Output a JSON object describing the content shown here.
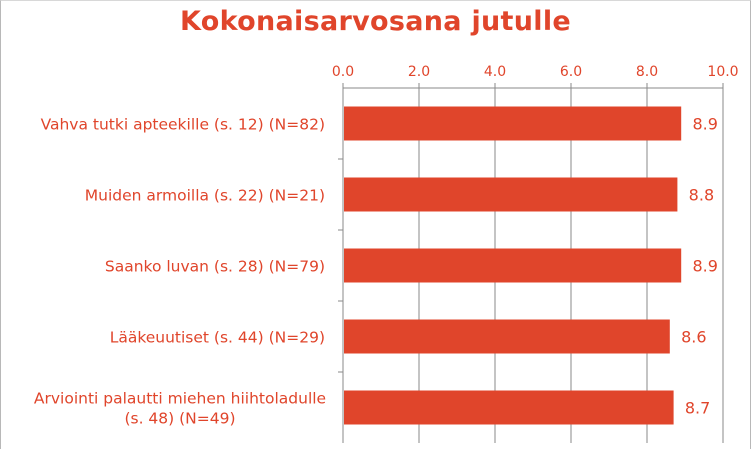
{
  "chart_data": {
    "type": "bar",
    "orientation": "horizontal",
    "title": "Kokonaisarvosana  jutulle",
    "categories": [
      [
        "Vahva tutki apteekille (s. 12) (N=82)"
      ],
      [
        "Muiden armoilla (s. 22) (N=21)"
      ],
      [
        "Saanko luvan (s. 28) (N=79)"
      ],
      [
        "Lääkeuutiset (s. 44) (N=29)"
      ],
      [
        "Arviointi palautti miehen hiihtoladulle",
        "(s. 48) (N=49)"
      ]
    ],
    "values": [
      8.9,
      8.8,
      8.9,
      8.6,
      8.7
    ],
    "data_labels": [
      "8.9",
      "8.8",
      "8.9",
      "8.6",
      "8.7"
    ],
    "xlim": [
      0,
      10
    ],
    "x_ticks": [
      "0.0",
      "2.0",
      "4.0",
      "6.0",
      "8.0",
      "10.0"
    ],
    "x_axis_position": "top",
    "grid": true,
    "bar_color": "#e0452b",
    "text_color": "#e0452b",
    "grid_color": "#8a8a8a"
  }
}
